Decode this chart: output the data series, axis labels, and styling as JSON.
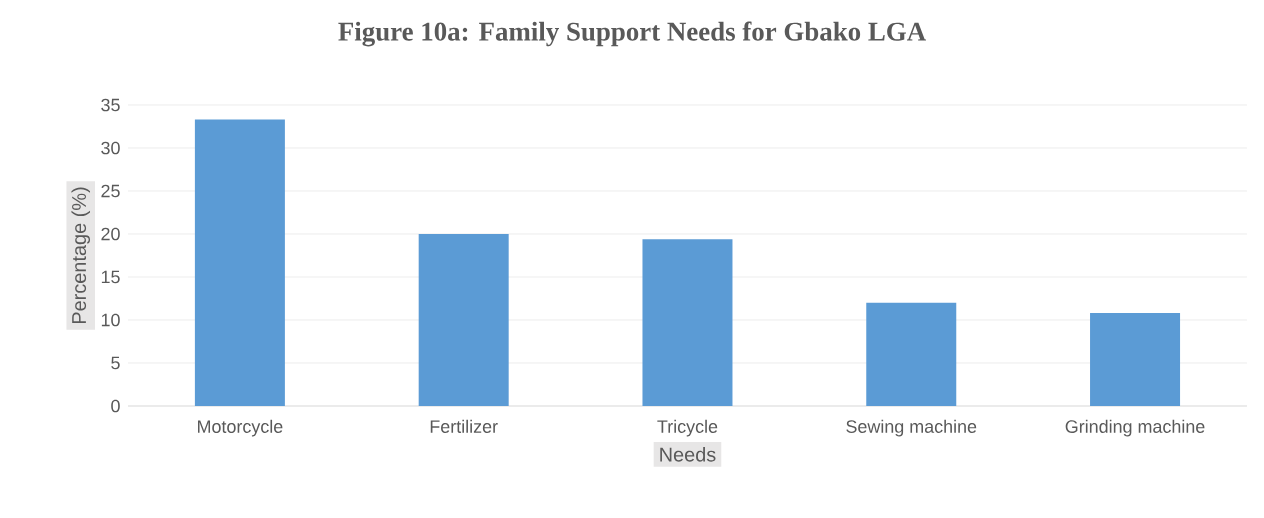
{
  "chart_data": {
    "type": "bar",
    "title": "Figure 10a: Family Support Needs for Gbako LGA",
    "xlabel": "Needs",
    "ylabel": "Percentage (%)",
    "categories": [
      "Motorcycle",
      "Fertilizer",
      "Tricycle",
      "Sewing machine",
      "Grinding machine"
    ],
    "values": [
      33.3,
      20.0,
      19.4,
      12.0,
      10.8
    ],
    "color": "#5b9bd5",
    "ylim": [
      0,
      35
    ],
    "yticks": [
      0,
      5,
      10,
      15,
      20,
      25,
      30,
      35
    ],
    "grid": "y"
  }
}
